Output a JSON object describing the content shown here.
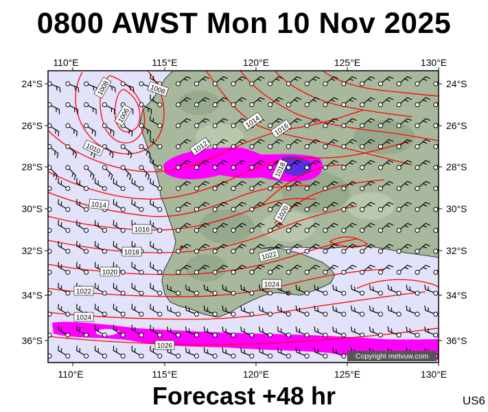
{
  "header": {
    "title": "0800 AWST Mon 10 Nov 2025"
  },
  "footer": {
    "forecast": "Forecast +48 hr",
    "model": "US6"
  },
  "map": {
    "copyright": "Copyright metvuw.com",
    "lon_labels": [
      "110°E",
      "115°E",
      "120°E",
      "125°E",
      "130°E"
    ],
    "lat_labels": [
      "24°S",
      "26°S",
      "28°S",
      "30°S",
      "32°S",
      "34°S",
      "36°S"
    ],
    "isobar_labels": [
      "1008",
      "1008",
      "1006",
      "1010",
      "1012",
      "1014",
      "1016",
      "1018",
      "1014",
      "1016",
      "1018",
      "1020",
      "1020",
      "1022",
      "1022",
      "1024",
      "1024",
      "1026"
    ],
    "colors": {
      "ocean": "#e2e2fa",
      "land": "#a8b89c",
      "isobar": "#ff0000",
      "rain": "#ff00ff",
      "heavy_rain": "#3a1fd6"
    }
  }
}
